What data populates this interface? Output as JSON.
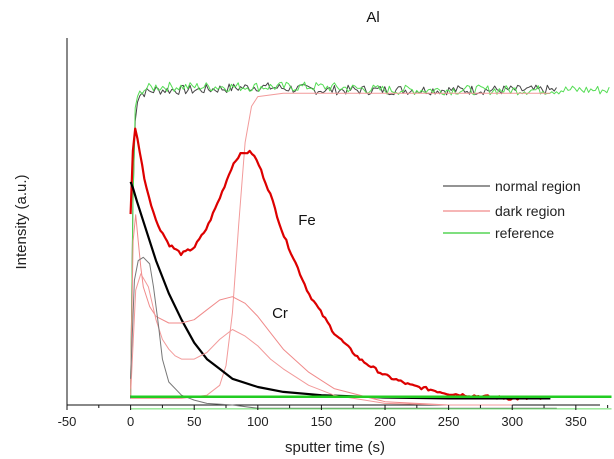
{
  "chart_data": {
    "type": "line",
    "title": "",
    "xlabel": "sputter time (s)",
    "ylabel": "Intensity (a.u.)",
    "xlim": [
      -50,
      380
    ],
    "ylim": [
      0,
      100
    ],
    "x_ticks": [
      -50,
      0,
      50,
      100,
      150,
      200,
      250,
      300,
      350
    ],
    "x_tick_labels": [
      "-50",
      "0",
      "50",
      "100",
      "150",
      "200",
      "250",
      "300",
      "350"
    ],
    "y_ticks_labeled": false,
    "grid": false,
    "legend_position": "right",
    "legend": [
      {
        "label": "normal region",
        "color": "#555555"
      },
      {
        "label": "dark region",
        "color": "#f08a8a"
      },
      {
        "label": "reference",
        "color": "#33cc33"
      }
    ],
    "annotations": [
      {
        "text": "Al",
        "x": 100,
        "y": 106
      },
      {
        "text": "Fe",
        "x": 178,
        "y": 55
      },
      {
        "text": "Cr",
        "x": 153,
        "y": 25
      }
    ],
    "series": [
      {
        "element": "Al",
        "region": "normal region",
        "color": "#444444",
        "width": 1,
        "x": [
          0,
          1,
          2,
          4,
          8,
          20,
          50,
          100,
          150,
          200,
          250,
          300,
          335
        ],
        "y": [
          2,
          30,
          70,
          92,
          95,
          96,
          96,
          97,
          96,
          96,
          96,
          96,
          96
        ],
        "noise": 1.5
      },
      {
        "element": "Al",
        "region": "reference",
        "color": "#55dd55",
        "width": 1,
        "x": [
          0,
          1,
          3,
          8,
          20,
          50,
          100,
          150,
          200,
          250,
          300,
          350,
          378
        ],
        "y": [
          2,
          40,
          90,
          96,
          97,
          97,
          97,
          97,
          96,
          96,
          96,
          96,
          96
        ],
        "noise": 1.5
      },
      {
        "element": "Al",
        "region": "dark region",
        "color": "#f29a9a",
        "width": 1,
        "x": [
          0,
          40,
          60,
          70,
          75,
          80,
          85,
          90,
          95,
          100,
          120,
          150,
          200,
          250,
          300,
          330
        ],
        "y": [
          2,
          2,
          3,
          6,
          12,
          28,
          55,
          80,
          91,
          94,
          95,
          95,
          95,
          95,
          95,
          95
        ]
      },
      {
        "element": "Fe",
        "region": "dark region",
        "color": "#dd0000",
        "width": 2.2,
        "x": [
          0,
          2,
          4,
          8,
          12,
          20,
          30,
          40,
          50,
          60,
          70,
          80,
          85,
          90,
          95,
          100,
          110,
          120,
          140,
          160,
          180,
          200,
          220,
          250,
          280,
          300,
          330
        ],
        "y": [
          58,
          80,
          85,
          75,
          67,
          56,
          49,
          46,
          48,
          54,
          63,
          73,
          76,
          77,
          77,
          74,
          64,
          52,
          34,
          22,
          14,
          9,
          6,
          3.5,
          2.5,
          2,
          2
        ],
        "noise": 0.5
      },
      {
        "element": "Fe",
        "region": "normal region",
        "color": "#000000",
        "width": 2.2,
        "x": [
          0,
          2,
          5,
          10,
          20,
          30,
          40,
          50,
          60,
          70,
          80,
          100,
          120,
          150,
          200,
          250,
          300,
          330
        ],
        "y": [
          68,
          66,
          62,
          56,
          44,
          34,
          26,
          19,
          14,
          11,
          8,
          5.5,
          4,
          3,
          2.3,
          2,
          2,
          2
        ]
      },
      {
        "element": "Cr",
        "region": "dark region",
        "color": "#f08a8a",
        "width": 1,
        "x": [
          0,
          2,
          4,
          6,
          8,
          10,
          15,
          20,
          30,
          40,
          50,
          60,
          70,
          80,
          90,
          100,
          110,
          120,
          140,
          160,
          200,
          250,
          300
        ],
        "y": [
          5,
          50,
          58,
          50,
          42,
          36,
          30,
          27,
          25,
          25,
          26,
          29,
          32,
          33,
          31,
          27,
          22,
          17,
          10,
          5,
          1,
          0,
          0
        ]
      },
      {
        "element": "Cr",
        "region": "dark region",
        "color": "#f29a9a",
        "width": 1,
        "x": [
          0,
          4,
          8,
          14,
          20,
          25,
          30,
          35,
          40,
          50,
          60,
          70,
          80,
          90,
          100,
          110,
          120,
          140,
          160,
          200,
          250,
          300
        ],
        "y": [
          3,
          35,
          40,
          36,
          26,
          20,
          17,
          15,
          14,
          14,
          16,
          20,
          23,
          21,
          18,
          14,
          11,
          6,
          3,
          0.5,
          0,
          0
        ]
      },
      {
        "element": "Cr",
        "region": "normal region",
        "color": "#777777",
        "width": 1,
        "x": [
          0,
          3,
          6,
          10,
          15,
          18,
          22,
          25,
          30,
          40,
          50,
          60,
          80,
          100,
          150,
          200,
          250,
          300,
          335
        ],
        "y": [
          8,
          38,
          44,
          45,
          43,
          36,
          24,
          14,
          7,
          3,
          1.5,
          0.5,
          0,
          -1,
          -1,
          -1,
          -1,
          -1,
          -1
        ]
      },
      {
        "element": "baseline",
        "region": "reference",
        "color": "#22cc22",
        "width": 2.5,
        "x": [
          0,
          378
        ],
        "y": [
          2.5,
          2.5
        ]
      },
      {
        "element": "baseline",
        "region": "reference",
        "color": "#66dd66",
        "width": 1,
        "x": [
          0,
          378
        ],
        "y": [
          -1.2,
          -1.2
        ]
      }
    ]
  }
}
